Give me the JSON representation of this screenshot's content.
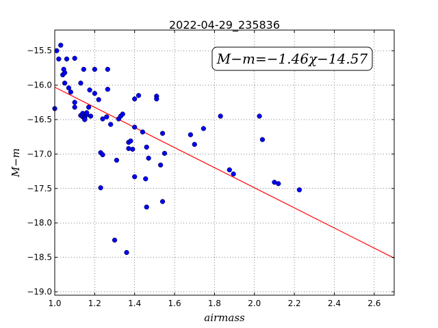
{
  "chart_data": {
    "type": "scatter",
    "title": "2022-04-29_235836",
    "xlabel": "airmass",
    "ylabel": "M−m",
    "xlim": [
      1.0,
      2.7
    ],
    "ylim": [
      -19.05,
      -15.2
    ],
    "y_inverted": true,
    "grid": true,
    "x_ticks": [
      "1.0",
      "1.2",
      "1.4",
      "1.6",
      "1.8",
      "2.0",
      "2.2",
      "2.4",
      "2.6"
    ],
    "y_ticks": [
      "−15.5",
      "−16.0",
      "−16.5",
      "−17.0",
      "−17.5",
      "−18.0",
      "−18.5",
      "−19.0"
    ],
    "annotation": "M−m=−1.46χ−14.57",
    "fit_line": {
      "slope": -1.46,
      "intercept": -14.57,
      "color": "#ff0000"
    },
    "marker_color": "#0000ff",
    "points": [
      [
        1.0,
        -16.34
      ],
      [
        1.01,
        -15.5
      ],
      [
        1.02,
        -15.62
      ],
      [
        1.03,
        -15.42
      ],
      [
        1.04,
        -15.85
      ],
      [
        1.045,
        -15.77
      ],
      [
        1.05,
        -15.82
      ],
      [
        1.05,
        -15.97
      ],
      [
        1.06,
        -15.62
      ],
      [
        1.07,
        -16.04
      ],
      [
        1.08,
        -16.1
      ],
      [
        1.1,
        -15.61
      ],
      [
        1.1,
        -16.25
      ],
      [
        1.1,
        -16.32
      ],
      [
        1.13,
        -15.97
      ],
      [
        1.13,
        -16.44
      ],
      [
        1.14,
        -16.46
      ],
      [
        1.14,
        -16.41
      ],
      [
        1.15,
        -16.44
      ],
      [
        1.15,
        -16.48
      ],
      [
        1.15,
        -16.5
      ],
      [
        1.16,
        -16.43
      ],
      [
        1.16,
        -16.4
      ],
      [
        1.17,
        -16.32
      ],
      [
        1.175,
        -16.07
      ],
      [
        1.18,
        -16.45
      ],
      [
        1.145,
        -15.77
      ],
      [
        1.2,
        -15.77
      ],
      [
        1.2,
        -16.12
      ],
      [
        1.22,
        -16.21
      ],
      [
        1.23,
        -16.98
      ],
      [
        1.23,
        -17.49
      ],
      [
        1.24,
        -17.01
      ],
      [
        1.24,
        -16.49
      ],
      [
        1.26,
        -16.46
      ],
      [
        1.265,
        -15.77
      ],
      [
        1.265,
        -16.06
      ],
      [
        1.28,
        -16.57
      ],
      [
        1.3,
        -18.25
      ],
      [
        1.31,
        -17.09
      ],
      [
        1.32,
        -16.49
      ],
      [
        1.33,
        -16.45
      ],
      [
        1.34,
        -16.42
      ],
      [
        1.36,
        -18.43
      ],
      [
        1.37,
        -16.92
      ],
      [
        1.37,
        -16.83
      ],
      [
        1.38,
        -16.81
      ],
      [
        1.39,
        -16.93
      ],
      [
        1.4,
        -16.61
      ],
      [
        1.4,
        -16.2
      ],
      [
        1.4,
        -17.33
      ],
      [
        1.42,
        -16.15
      ],
      [
        1.44,
        -16.68
      ],
      [
        1.455,
        -17.36
      ],
      [
        1.46,
        -17.77
      ],
      [
        1.46,
        -16.9
      ],
      [
        1.47,
        -17.06
      ],
      [
        1.51,
        -16.16
      ],
      [
        1.51,
        -16.2
      ],
      [
        1.53,
        -17.16
      ],
      [
        1.54,
        -16.7
      ],
      [
        1.54,
        -17.69
      ],
      [
        1.55,
        -16.99
      ],
      [
        1.68,
        -16.72
      ],
      [
        1.7,
        -16.86
      ],
      [
        1.745,
        -16.63
      ],
      [
        1.83,
        -16.45
      ],
      [
        1.875,
        -17.23
      ],
      [
        1.895,
        -17.29
      ],
      [
        2.025,
        -16.45
      ],
      [
        2.04,
        -16.79
      ],
      [
        2.1,
        -17.41
      ],
      [
        2.12,
        -17.43
      ],
      [
        2.225,
        -17.52
      ]
    ]
  }
}
